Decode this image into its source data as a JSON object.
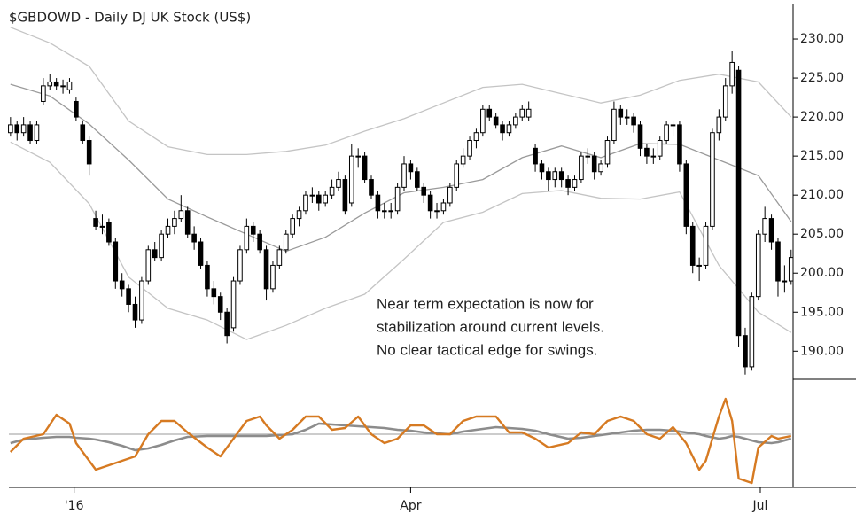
{
  "chart_data": [
    {
      "type": "candlestick",
      "title": "$GBDOWD - Daily  DJ UK Stock (US$)",
      "up_color": "#ffffff",
      "down_color": "#000000",
      "ohlc": [
        [
          218,
          220,
          217.5,
          219
        ],
        [
          219,
          219.5,
          217,
          218
        ],
        [
          218,
          220,
          217.5,
          219
        ],
        [
          219,
          219.5,
          216.5,
          217
        ],
        [
          217,
          219.5,
          216.5,
          219
        ],
        [
          222,
          225,
          221.5,
          224
        ],
        [
          224,
          225.5,
          223.5,
          224.5
        ],
        [
          224.5,
          225,
          223.5,
          224
        ],
        [
          224,
          224.8,
          223,
          224
        ],
        [
          223.5,
          225,
          223,
          224.5
        ],
        [
          222,
          222.5,
          219.5,
          220
        ],
        [
          219,
          219.5,
          216.5,
          217
        ],
        [
          217,
          217.5,
          212.5,
          214
        ],
        [
          207,
          208,
          205.5,
          206
        ],
        [
          206,
          207.5,
          205,
          206
        ],
        [
          206.5,
          207,
          203.5,
          204
        ],
        [
          204,
          204.5,
          198,
          199
        ],
        [
          199,
          200,
          197,
          198
        ],
        [
          198,
          198.5,
          195,
          196
        ],
        [
          196,
          197,
          193,
          194
        ],
        [
          194,
          199.5,
          193.5,
          199
        ],
        [
          199,
          203.5,
          198.5,
          203
        ],
        [
          203,
          204,
          201.5,
          202
        ],
        [
          202,
          205.5,
          201.5,
          205
        ],
        [
          205,
          207,
          204.5,
          206
        ],
        [
          206,
          208,
          205,
          207
        ],
        [
          207,
          210,
          206.5,
          208
        ],
        [
          208,
          208.5,
          204.5,
          205
        ],
        [
          205,
          206,
          203,
          204
        ],
        [
          204,
          204.5,
          200.5,
          201
        ],
        [
          201,
          201.5,
          197,
          198
        ],
        [
          198,
          199,
          196,
          197
        ],
        [
          197,
          197.5,
          194,
          195
        ],
        [
          195,
          195.5,
          191,
          192
        ],
        [
          193,
          199.5,
          192.5,
          199
        ],
        [
          199,
          203.5,
          198.5,
          203
        ],
        [
          203,
          207,
          202.5,
          206
        ],
        [
          206,
          206.5,
          204,
          205
        ],
        [
          205,
          205.5,
          202.5,
          203
        ],
        [
          203,
          203.5,
          196.5,
          198
        ],
        [
          198,
          201.5,
          197.5,
          201
        ],
        [
          201,
          203.5,
          200.5,
          203
        ],
        [
          203,
          205.5,
          202.5,
          205
        ],
        [
          205,
          207.5,
          204.5,
          207
        ],
        [
          207,
          208.5,
          206,
          208
        ],
        [
          208,
          210.5,
          207.5,
          210
        ],
        [
          210,
          211,
          209,
          210
        ],
        [
          210,
          210.5,
          208,
          209
        ],
        [
          209,
          210.5,
          208.5,
          210
        ],
        [
          210,
          212,
          209.5,
          211
        ],
        [
          211,
          213,
          210.5,
          212
        ],
        [
          212,
          212.5,
          207.5,
          208
        ],
        [
          209,
          216.5,
          208.5,
          215
        ],
        [
          215,
          216,
          213.5,
          215
        ],
        [
          215,
          215.5,
          211.5,
          212
        ],
        [
          212,
          212.5,
          209.5,
          210
        ],
        [
          210,
          210.5,
          207,
          208
        ],
        [
          208,
          209,
          207,
          208
        ],
        [
          208,
          209,
          207,
          208
        ],
        [
          208,
          211.5,
          207.5,
          211
        ],
        [
          211,
          215,
          210.5,
          214
        ],
        [
          214,
          214.5,
          212,
          213
        ],
        [
          213,
          213.5,
          210.5,
          211
        ],
        [
          211,
          211.5,
          209,
          210
        ],
        [
          210,
          210.5,
          207,
          208
        ],
        [
          208,
          209,
          207,
          208
        ],
        [
          208,
          209.5,
          207.5,
          209
        ],
        [
          209,
          211.5,
          208.5,
          211
        ],
        [
          211,
          214.5,
          210.5,
          214
        ],
        [
          214,
          216,
          213.5,
          215
        ],
        [
          215,
          217.5,
          214.5,
          217
        ],
        [
          217,
          218.5,
          216,
          218
        ],
        [
          218,
          221.5,
          217.5,
          221
        ],
        [
          221,
          221.5,
          219.5,
          220
        ],
        [
          220,
          220.5,
          218.5,
          219
        ],
        [
          219,
          219.5,
          217,
          218
        ],
        [
          218,
          219.5,
          217.5,
          219
        ],
        [
          219,
          220.5,
          218.5,
          220
        ],
        [
          220,
          221.5,
          219.5,
          221
        ],
        [
          220,
          222,
          219.5,
          221
        ],
        [
          216,
          216.5,
          213,
          214
        ],
        [
          214,
          214.5,
          212,
          213
        ],
        [
          213,
          213.5,
          210.5,
          212
        ],
        [
          212,
          213.5,
          211,
          213
        ],
        [
          213,
          213.5,
          211,
          212
        ],
        [
          212,
          212.5,
          210,
          211
        ],
        [
          211,
          212.5,
          210.5,
          212
        ],
        [
          212,
          215.5,
          211.5,
          215
        ],
        [
          215,
          216,
          214,
          215
        ],
        [
          215,
          215.5,
          212,
          213
        ],
        [
          213,
          214.5,
          212.5,
          214
        ],
        [
          214,
          217.5,
          213.5,
          217
        ],
        [
          217,
          222,
          216.5,
          221
        ],
        [
          221,
          221.5,
          219,
          220
        ],
        [
          220,
          221,
          219,
          220
        ],
        [
          220,
          220.5,
          218,
          219
        ],
        [
          219,
          219.5,
          215,
          216
        ],
        [
          216,
          216.5,
          214,
          215
        ],
        [
          215,
          216,
          214,
          215
        ],
        [
          215,
          217.5,
          214.5,
          217
        ],
        [
          217,
          219.5,
          216.5,
          219
        ],
        [
          219,
          219.5,
          217.5,
          219
        ],
        [
          219,
          219.5,
          213,
          214
        ],
        [
          214,
          214.5,
          205,
          206
        ],
        [
          206,
          206.5,
          200,
          201
        ],
        [
          201,
          202,
          199,
          201
        ],
        [
          201,
          206.5,
          200.5,
          206
        ],
        [
          206,
          218.5,
          205.5,
          218
        ],
        [
          218,
          221,
          217,
          220
        ],
        [
          220,
          225,
          219.5,
          224
        ],
        [
          224,
          228.5,
          223,
          227
        ],
        [
          226,
          226.5,
          190.5,
          192
        ],
        [
          192,
          193,
          187,
          188
        ],
        [
          188,
          197.5,
          187.5,
          197
        ],
        [
          197,
          205.5,
          196.5,
          205
        ],
        [
          205,
          208.5,
          204,
          207
        ],
        [
          207,
          207.5,
          203,
          204
        ],
        [
          204,
          204.5,
          197,
          199
        ],
        [
          199,
          201,
          197.5,
          199
        ],
        [
          199,
          203,
          198.5,
          202
        ]
      ],
      "lines": {
        "x": [
          0,
          6,
          12,
          18,
          24,
          30,
          36,
          42,
          48,
          54,
          60,
          66,
          72,
          78,
          84,
          90,
          96,
          102,
          108,
          114,
          119
        ],
        "series": [
          {
            "color": "#c4c4c4",
            "values": [
              231.5,
              229.5,
              226.5,
              219.5,
              216.2,
              215.2,
              215.2,
              215.6,
              216.4,
              218.2,
              219.8,
              221.8,
              223.8,
              224.2,
              223,
              221.8,
              222.8,
              224.7,
              225.5,
              224.5,
              220
            ]
          },
          {
            "color": "#9a9a9a",
            "values": [
              224.2,
              222.7,
              219.1,
              214.5,
              209.5,
              207.2,
              205,
              202.8,
              204.6,
              207.7,
              210.3,
              211,
              212,
              214.8,
              216.3,
              214.8,
              216.6,
              216.5,
              214.5,
              212.5,
              206.6
            ]
          },
          {
            "color": "#c4c4c4",
            "values": [
              216.8,
              214.2,
              208.9,
              199.5,
              195.5,
              194,
              191.5,
              193.3,
              195.5,
              197.3,
              201.8,
              206.5,
              207.8,
              210.2,
              210.6,
              209.6,
              209.5,
              210.4,
              201,
              195,
              192.4
            ]
          }
        ]
      },
      "xlim": [
        -1.6,
        119.3
      ],
      "ylim": [
        186.4,
        235
      ],
      "yticks": [
        {
          "value": 190,
          "label": "190.00"
        },
        {
          "value": 195,
          "label": "195.00"
        },
        {
          "value": 200,
          "label": "200.00"
        },
        {
          "value": 205,
          "label": "205.00"
        },
        {
          "value": 210,
          "label": "210.00"
        },
        {
          "value": 215,
          "label": "215.00"
        },
        {
          "value": 220,
          "label": "220.00"
        },
        {
          "value": 225,
          "label": "225.00"
        },
        {
          "value": 230,
          "label": "230.00"
        }
      ],
      "xticks": [
        {
          "value": 9.7,
          "label": "'16"
        },
        {
          "value": 61,
          "label": "Apr"
        },
        {
          "value": 114.3,
          "label": "Jul"
        }
      ],
      "annotation": [
        "Near term expectation is now for",
        "stabilization around current levels.",
        "No clear tactical edge for swings."
      ]
    },
    {
      "type": "line",
      "xlim": [
        -1.6,
        119.3
      ],
      "ylim": [
        -60,
        50
      ],
      "reference": 0,
      "x": [
        0,
        2,
        5,
        7,
        9,
        10,
        12,
        13,
        15,
        17,
        19,
        21,
        23,
        25,
        27,
        30,
        32,
        34,
        36,
        38,
        39,
        41,
        43,
        45,
        47,
        49,
        51,
        53,
        55,
        57,
        59,
        61,
        63,
        65,
        67,
        69,
        71,
        74,
        76,
        78,
        80,
        82,
        85,
        87,
        89,
        91,
        93,
        95,
        97,
        99,
        101,
        103,
        105,
        106,
        108,
        109,
        110,
        111,
        113,
        114,
        116,
        117,
        119
      ],
      "series": [
        {
          "color": "#d67a22",
          "values": [
            -20,
            -5,
            0,
            22,
            12,
            -10,
            -30,
            -40,
            -35,
            -30,
            -25,
            0,
            15,
            15,
            2,
            -15,
            -25,
            -5,
            15,
            20,
            10,
            -5,
            5,
            20,
            20,
            5,
            7,
            20,
            0,
            -10,
            -5,
            10,
            10,
            0,
            0,
            15,
            20,
            20,
            2,
            2,
            -5,
            -15,
            -10,
            2,
            0,
            15,
            20,
            15,
            0,
            -5,
            8,
            -10,
            -40,
            -30,
            20,
            40,
            15,
            -50,
            -55,
            -15,
            -2,
            -5,
            -2
          ]
        },
        {
          "color": "#8c8c8c",
          "values": [
            -10,
            -6,
            -4,
            -3,
            -3,
            -4,
            -5,
            -6,
            -9,
            -13,
            -18,
            -16,
            -12,
            -7,
            -3,
            -2,
            -2,
            -2,
            -2,
            -2,
            -2,
            -1,
            0,
            5,
            12,
            11,
            10,
            9,
            8,
            7,
            5,
            4,
            2,
            1,
            0,
            3,
            5,
            8,
            7,
            6,
            4,
            0,
            -5,
            -4,
            -2,
            0,
            2,
            4,
            5,
            5,
            4,
            2,
            0,
            -2,
            -5,
            -4,
            -2,
            -3,
            -7,
            -9,
            -10,
            -9,
            -5
          ]
        }
      ]
    }
  ]
}
